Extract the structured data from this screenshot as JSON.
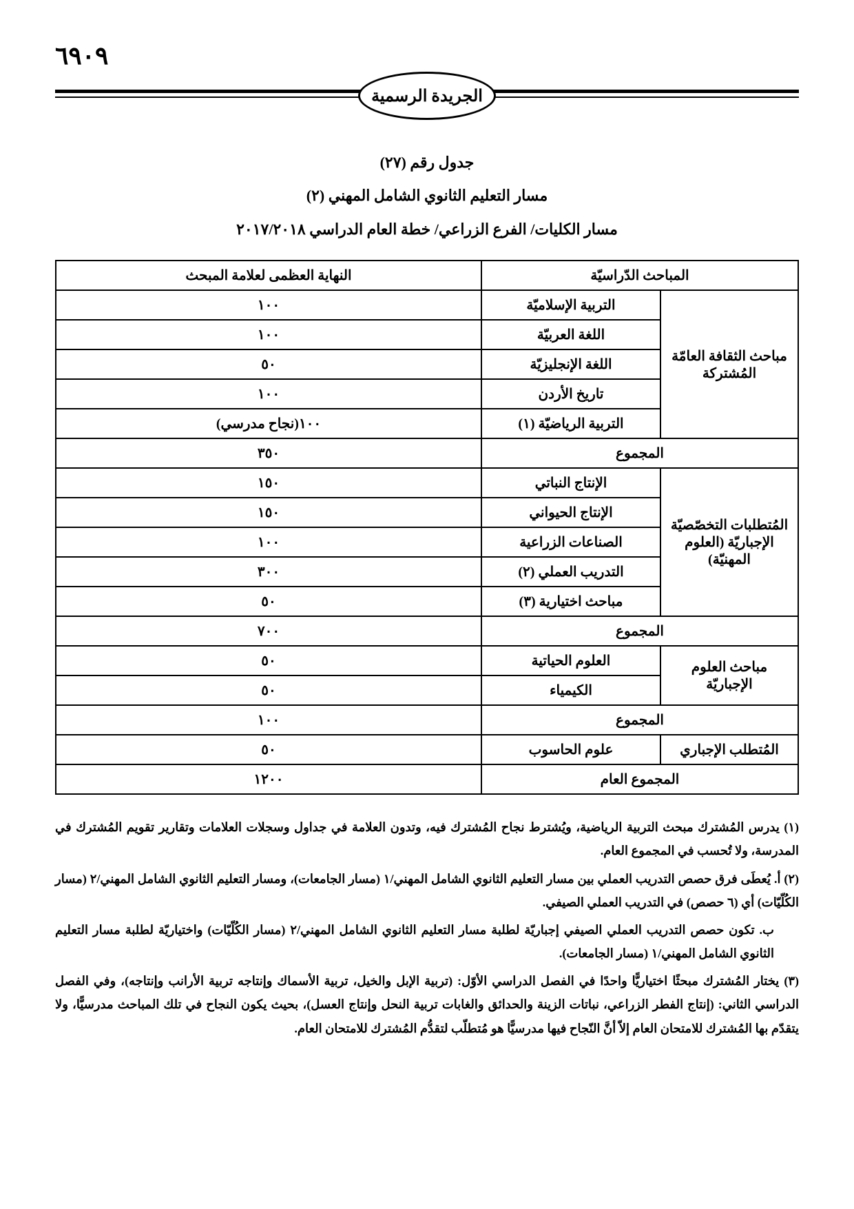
{
  "page_number_display": "٦٩٠٩",
  "masthead_title": "الجريدة الرسمية",
  "table_number": "جدول رقم (٢٧)",
  "track_title": "مسار التعليم الثانوي الشامل المهني (٢)",
  "plan_title": "مسار الكليات/ الفرع الزراعي/ خطة العام الدراسي ٢٠١٧/٢٠١٨",
  "headers": {
    "subjects": "المباحث الدّراسيّة",
    "max_mark": "النهاية العظمى لعلامة المبحث"
  },
  "categories": {
    "general_culture": "مباحث الثقافة العامّة المُشتركة",
    "special_req": "المُتطلبات التخصّصيّة الإجباريّة (العلوم المهنيّة)",
    "science_req": "مباحث العلوم الإجباريّة",
    "mandatory_req": "المُتطلب الإجباري"
  },
  "rows": {
    "islamic": {
      "name": "التربية الإسلاميّة",
      "max": "١٠٠"
    },
    "arabic": {
      "name": "اللغة العربيّة",
      "max": "١٠٠"
    },
    "english": {
      "name": "اللغة الإنجليزيّة",
      "max": "٥٠"
    },
    "jordan_history": {
      "name": "تاريخ الأردن",
      "max": "١٠٠"
    },
    "pe1": {
      "name": "التربية الرياضيّة (١)",
      "max": "١٠٠(نجاح مدرسي)"
    },
    "subtotal1_label": "المجموع",
    "subtotal1_value": "٣٥٠",
    "plant_prod": {
      "name": "الإنتاج النباتي",
      "max": "١٥٠"
    },
    "animal_prod": {
      "name": "الإنتاج الحيواني",
      "max": "١٥٠"
    },
    "agri_industries": {
      "name": "الصناعات الزراعية",
      "max": "١٠٠"
    },
    "practical2": {
      "name": "التدريب العملي (٢)",
      "max": "٣٠٠"
    },
    "elective3": {
      "name": "مباحث اختيارية (٣)",
      "max": "٥٠"
    },
    "subtotal2_label": "المجموع",
    "subtotal2_value": "٧٠٠",
    "biology": {
      "name": "العلوم الحياتية",
      "max": "٥٠"
    },
    "chemistry": {
      "name": "الكيمياء",
      "max": "٥٠"
    },
    "subtotal3_label": "المجموع",
    "subtotal3_value": "١٠٠",
    "computer": {
      "name": "علوم الحاسوب",
      "max": "٥٠"
    },
    "grand_total_label": "المجموع العام",
    "grand_total_value": "١٢٠٠"
  },
  "notes": {
    "n1": "(١) يدرس المُشترك مبحث التربية الرياضية، ويُشترط نجاح المُشترك فيه، وتدون العلامة في جداول وسجلات العلامات وتقارير تقويم المُشترك في المدرسة، ولا تُحسب في المجموع العام.",
    "n2a": "(٢) أ. يُعطَى فرق حصص التدريب العملي بين مسار التعليم الثانوي الشامل المهني/١ (مسار الجامعات)، ومسار التعليم الثانوي الشامل المهني/٢ (مسار الكُلّيّات) أي (٦ حصص) في التدريب العملي الصيفي.",
    "n2b": "ب. تكون حصص التدريب العملي الصيفي إجباريّة لطلبة مسار التعليم الثانوي الشامل المهني/٢ (مسار الكُلّيّات) واختياريّة لطلبة مسار التعليم الثانوي الشامل المهني/١ (مسار الجامعات).",
    "n3": "(٣) يختار المُشترك مبحثًا اختياريًّا واحدًا في الفصل الدراسي الأوّل: (تربية الإبل والخيل، تربية الأسماك وإنتاجه تربية الأرانب وإنتاجه)، وفي الفصل الدراسي الثاني: (إنتاج الفطر الزراعي، نباتات الزينة والحدائق والغابات تربية النحل وإنتاج العسل)، بحيث يكون النجاح في تلك المباحث مدرسيًّا، ولا يتقدّم بها المُشترك للامتحان العام إلاّ أنَّ النّجاح فيها مدرسيًّا هو مُتطلّب لتقدُّم المُشترك للامتحان العام."
  }
}
